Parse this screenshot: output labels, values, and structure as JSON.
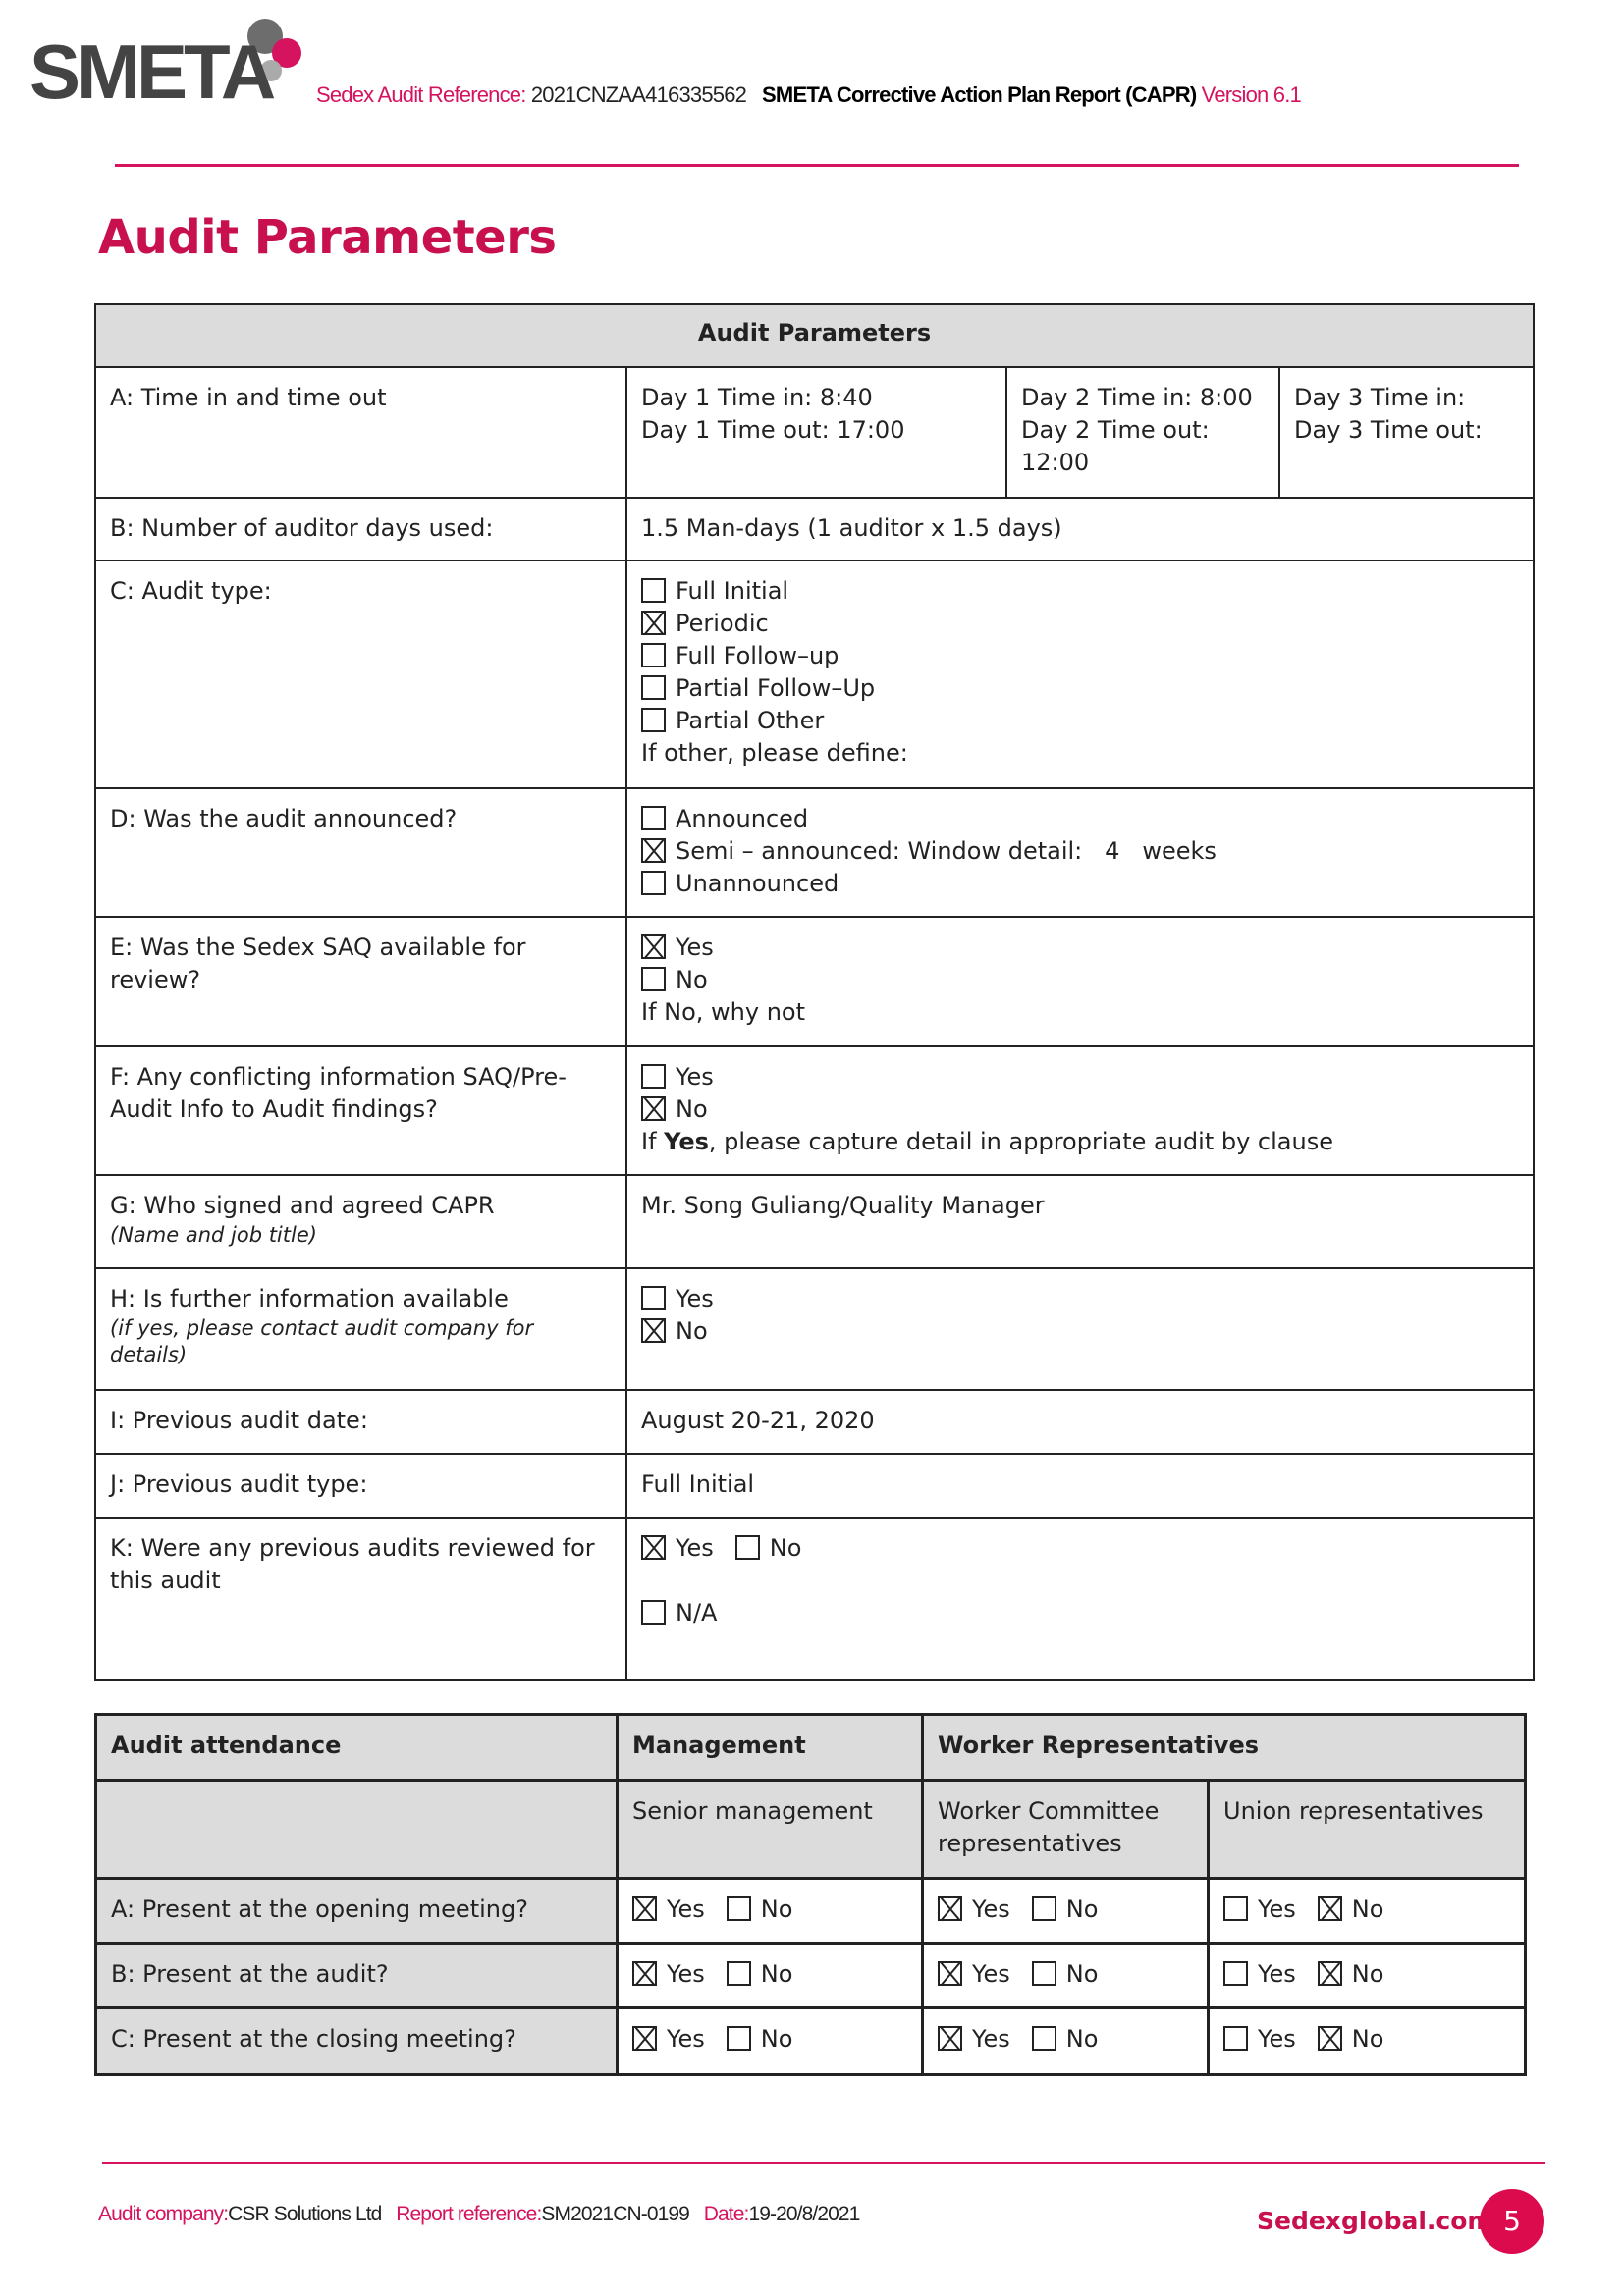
{
  "header": {
    "logo_text": "SMETA",
    "ref_label": "Sedex Audit Reference:",
    "ref_value": "2021CNZAA416335562",
    "report_title": "SMETA Corrective Action Plan Report (CAPR)",
    "version": "Version 6.1"
  },
  "page_title": "Audit Parameters",
  "colors": {
    "accent": "#d5135f",
    "header_bg": "#dcdcdc"
  },
  "params": {
    "heading": "Audit Parameters",
    "a": {
      "label": "A: Time in and time out",
      "d1_in": "Day 1 Time in: 8:40",
      "d1_out": "Day 1 Time out: 17:00",
      "d2_in": "Day 2 Time in: 8:00",
      "d2_out": "Day 2 Time out:",
      "d2_out_val": "12:00",
      "d3_in": "Day 3 Time in:",
      "d3_out": "Day 3 Time out:"
    },
    "b": {
      "label": "B: Number of auditor days used:",
      "value": "1.5 Man-days (1 auditor x 1.5 days)"
    },
    "c": {
      "label": "C: Audit type:",
      "options": [
        {
          "label": "Full Initial",
          "checked": false
        },
        {
          "label": "Periodic",
          "checked": true
        },
        {
          "label": "Full Follow–up",
          "checked": false
        },
        {
          "label": "Partial Follow–Up",
          "checked": false
        },
        {
          "label": "Partial Other",
          "checked": false
        }
      ],
      "other": "If other, please define:"
    },
    "d": {
      "label": "D: Was the audit announced?",
      "options": [
        {
          "label": "Announced",
          "checked": false
        },
        {
          "label": "Semi – announced: Window detail:",
          "checked": true
        },
        {
          "label": "Unannounced",
          "checked": false
        }
      ],
      "window_value": "4",
      "window_unit": "weeks"
    },
    "e": {
      "label": "E: Was the Sedex SAQ available for review?",
      "options": [
        {
          "label": "Yes",
          "checked": true
        },
        {
          "label": "No",
          "checked": false
        }
      ],
      "note": "If No, why not"
    },
    "f": {
      "label": "F: Any conflicting information SAQ/Pre-Audit Info to Audit findings?",
      "options": [
        {
          "label": "Yes",
          "checked": false
        },
        {
          "label": "No",
          "checked": true
        }
      ],
      "note_pre": "If ",
      "note_bold": "Yes",
      "note_post": ", please capture detail in appropriate audit by clause"
    },
    "g": {
      "label": "G: Who signed and agreed CAPR",
      "sub": "(Name and job title)",
      "value": "Mr. Song Guliang/Quality Manager"
    },
    "h": {
      "label": "H: Is further information available",
      "sub": "(if yes, please contact audit company for details)",
      "options": [
        {
          "label": "Yes",
          "checked": false
        },
        {
          "label": "No",
          "checked": true
        }
      ]
    },
    "i": {
      "label": "I: Previous audit date:",
      "value": "August 20-21, 2020"
    },
    "j": {
      "label": "J: Previous audit type:",
      "value": "Full Initial"
    },
    "k": {
      "label": "K: Were any previous audits reviewed for this audit",
      "options": [
        {
          "label": "Yes",
          "checked": true
        },
        {
          "label": "No",
          "checked": false
        },
        {
          "label": "N/A",
          "checked": false
        }
      ]
    }
  },
  "attendance": {
    "h_col1": "Audit attendance",
    "h_mgmt": "Management",
    "h_workers": "Worker Representatives",
    "sub_senior": "Senior management",
    "sub_committee": "Worker Committee representatives",
    "sub_union": "Union representatives",
    "yes": "Yes",
    "no": "No",
    "rows": [
      {
        "label": "A: Present at the opening meeting?",
        "senior": true,
        "committee": true,
        "union": false
      },
      {
        "label": "B: Present at the audit?",
        "senior": true,
        "committee": true,
        "union": false
      },
      {
        "label": "C: Present at the closing meeting?",
        "senior": true,
        "committee": true,
        "union": false
      }
    ]
  },
  "footer": {
    "company_label": "Audit company:",
    "company": "CSR Solutions Ltd",
    "ref_label": "Report reference:",
    "ref": "SM2021CN-0199",
    "date_label": "Date:",
    "date": "19-20/8/2021",
    "site": "Sedexglobal.com",
    "page": "5"
  }
}
